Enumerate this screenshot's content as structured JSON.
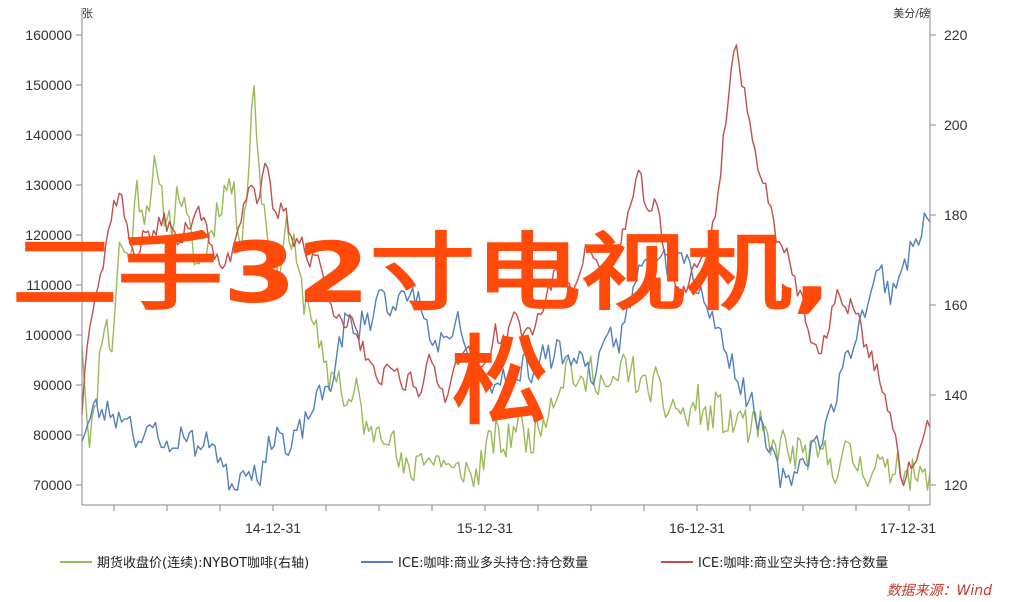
{
  "chart_data": {
    "type": "line",
    "left_axis_unit": "张",
    "right_axis_unit": "美分/磅",
    "left_ylim": [
      70000,
      160000
    ],
    "left_ticks": [
      "160000",
      "150000",
      "140000",
      "130000",
      "120000",
      "110000",
      "100000",
      "90000",
      "80000",
      "70000"
    ],
    "right_ylim": [
      120,
      220
    ],
    "right_ticks": [
      "220",
      "200",
      "180",
      "160",
      "140",
      "120"
    ],
    "x_labels": [
      "14-12-31",
      "15-12-31",
      "16-12-31",
      "17-12-31"
    ],
    "grid": false,
    "legend_position": "bottom",
    "source": "数据来源：Wind",
    "series": [
      {
        "name": "期货收盘价(连续):NYBOT咖啡(右轴)",
        "axis": "right",
        "color": "#9aba59",
        "anchors": [
          [
            0,
            153
          ],
          [
            0.3,
            131
          ],
          [
            0.6,
            135
          ],
          [
            1,
            158
          ],
          [
            1.4,
            150
          ],
          [
            1.8,
            175
          ],
          [
            2.2,
            169
          ],
          [
            2.6,
            186
          ],
          [
            3,
            180
          ],
          [
            3.4,
            190
          ],
          [
            3.8,
            182
          ],
          [
            4.2,
            178
          ],
          [
            4.6,
            186
          ],
          [
            5,
            177
          ],
          [
            5.5,
            168
          ],
          [
            6,
            175
          ],
          [
            6.5,
            183
          ],
          [
            7,
            188
          ],
          [
            7.5,
            175
          ],
          [
            7.8,
            186
          ],
          [
            8.1,
            210
          ],
          [
            8.4,
            187
          ],
          [
            8.8,
            175
          ],
          [
            9.2,
            165
          ],
          [
            9.6,
            178
          ],
          [
            10,
            172
          ],
          [
            10.4,
            162
          ],
          [
            10.8,
            160
          ],
          [
            11.2,
            150
          ],
          [
            11.6,
            143
          ],
          [
            12,
            146
          ],
          [
            12.5,
            137
          ],
          [
            13,
            141
          ],
          [
            13.5,
            130
          ],
          [
            14,
            134
          ],
          [
            14.5,
            132
          ],
          [
            15,
            124
          ],
          [
            15.5,
            122
          ],
          [
            16,
            128
          ],
          [
            16.5,
            125
          ],
          [
            17,
            126
          ],
          [
            17.5,
            122
          ],
          [
            18,
            124
          ],
          [
            18.5,
            121
          ],
          [
            19,
            127
          ],
          [
            19.5,
            131
          ],
          [
            20,
            128
          ],
          [
            20.5,
            135
          ],
          [
            21,
            130
          ],
          [
            21.5,
            132
          ],
          [
            22,
            138
          ],
          [
            22.5,
            142
          ],
          [
            23,
            148
          ],
          [
            23.5,
            140
          ],
          [
            24,
            146
          ],
          [
            24.5,
            143
          ],
          [
            25,
            140
          ],
          [
            25.5,
            147
          ],
          [
            26,
            145
          ],
          [
            26.5,
            141
          ],
          [
            27,
            143
          ],
          [
            27.5,
            137
          ],
          [
            28,
            138
          ],
          [
            28.5,
            134
          ],
          [
            29,
            139
          ],
          [
            29.5,
            134
          ],
          [
            30,
            138
          ],
          [
            30.5,
            132
          ],
          [
            31,
            136
          ],
          [
            31.5,
            132
          ],
          [
            32,
            133
          ],
          [
            32.5,
            127
          ],
          [
            33,
            130
          ],
          [
            33.5,
            126
          ],
          [
            34,
            128
          ],
          [
            34.5,
            126
          ],
          [
            35,
            127
          ],
          [
            35.5,
            124
          ],
          [
            36,
            127
          ],
          [
            36.5,
            125
          ],
          [
            37,
            123
          ],
          [
            37.5,
            125
          ],
          [
            38,
            122
          ],
          [
            38.5,
            126
          ],
          [
            39,
            122
          ],
          [
            40,
            121
          ]
        ],
        "amplitude": 4,
        "samples": 340,
        "seed": 11
      },
      {
        "name": "ICE:咖啡:商业多头持仓:持仓数量",
        "axis": "left",
        "color": "#4f81bd",
        "anchors": [
          [
            0,
            80000
          ],
          [
            0.3,
            82000
          ],
          [
            0.6,
            86000
          ],
          [
            0.9,
            84000
          ],
          [
            1.3,
            85000
          ],
          [
            1.7,
            83000
          ],
          [
            2.1,
            85000
          ],
          [
            2.5,
            80000
          ],
          [
            2.9,
            78000
          ],
          [
            3.3,
            82000
          ],
          [
            3.7,
            80000
          ],
          [
            4.1,
            76000
          ],
          [
            4.5,
            79000
          ],
          [
            4.9,
            81000
          ],
          [
            5.3,
            78000
          ],
          [
            5.7,
            77000
          ],
          [
            6.1,
            80000
          ],
          [
            6.5,
            75000
          ],
          [
            6.9,
            71000
          ],
          [
            7.3,
            70000
          ],
          [
            7.7,
            74000
          ],
          [
            8.1,
            73000
          ],
          [
            8.5,
            72000
          ],
          [
            8.9,
            79000
          ],
          [
            9.3,
            82000
          ],
          [
            9.7,
            75000
          ],
          [
            10.1,
            80000
          ],
          [
            10.5,
            82000
          ],
          [
            10.9,
            86000
          ],
          [
            11.3,
            88000
          ],
          [
            11.7,
            90000
          ],
          [
            12.1,
            97000
          ],
          [
            12.5,
            104000
          ],
          [
            12.9,
            99000
          ],
          [
            13.3,
            104000
          ],
          [
            13.7,
            103000
          ],
          [
            14.1,
            110000
          ],
          [
            14.5,
            105000
          ],
          [
            14.9,
            108000
          ],
          [
            15.3,
            106000
          ],
          [
            15.7,
            109000
          ],
          [
            16.1,
            104000
          ],
          [
            16.5,
            98000
          ],
          [
            16.9,
            99000
          ],
          [
            17.3,
            97000
          ],
          [
            17.7,
            103000
          ],
          [
            18.1,
            98000
          ],
          [
            18.5,
            91000
          ],
          [
            18.9,
            94000
          ],
          [
            19.3,
            89000
          ],
          [
            19.7,
            92000
          ],
          [
            20.1,
            93000
          ],
          [
            20.5,
            90000
          ],
          [
            20.9,
            95000
          ],
          [
            21.3,
            92000
          ],
          [
            21.7,
            97000
          ],
          [
            22.1,
            95000
          ],
          [
            22.5,
            98000
          ],
          [
            22.9,
            94000
          ],
          [
            23.3,
            97000
          ],
          [
            23.7,
            94000
          ],
          [
            24.1,
            92000
          ],
          [
            24.5,
            95000
          ],
          [
            24.9,
            100000
          ],
          [
            25.3,
            98000
          ],
          [
            25.7,
            104000
          ],
          [
            26.1,
            110000
          ],
          [
            26.5,
            117000
          ],
          [
            26.9,
            114000
          ],
          [
            27.3,
            118000
          ],
          [
            27.7,
            113000
          ],
          [
            28.1,
            118000
          ],
          [
            28.5,
            116000
          ],
          [
            28.9,
            111000
          ],
          [
            29.3,
            108000
          ],
          [
            29.7,
            104000
          ],
          [
            30.1,
            100000
          ],
          [
            30.5,
            96000
          ],
          [
            30.9,
            92000
          ],
          [
            31.3,
            88000
          ],
          [
            31.7,
            86000
          ],
          [
            32.1,
            80000
          ],
          [
            32.5,
            76000
          ],
          [
            32.9,
            72000
          ],
          [
            33.3,
            70000
          ],
          [
            33.7,
            74000
          ],
          [
            34.1,
            75000
          ],
          [
            34.5,
            78000
          ],
          [
            34.9,
            80000
          ],
          [
            35.3,
            84000
          ],
          [
            35.7,
            90000
          ],
          [
            36.1,
            96000
          ],
          [
            36.5,
            100000
          ],
          [
            36.9,
            105000
          ],
          [
            37.3,
            110000
          ],
          [
            37.7,
            113000
          ],
          [
            38.1,
            108000
          ],
          [
            38.5,
            112000
          ],
          [
            38.9,
            115000
          ],
          [
            39.3,
            118000
          ],
          [
            39.7,
            123000
          ],
          [
            40,
            122000
          ]
        ],
        "amplitude": 2500,
        "samples": 300,
        "seed": 23
      },
      {
        "name": "ICE:咖啡:商业空头持仓:持仓数量",
        "axis": "left",
        "color": "#c0504d",
        "anchors": [
          [
            0,
            85000
          ],
          [
            0.3,
            102000
          ],
          [
            0.6,
            108000
          ],
          [
            1,
            114000
          ],
          [
            1.4,
            125000
          ],
          [
            1.8,
            129000
          ],
          [
            2.2,
            119000
          ],
          [
            2.6,
            116000
          ],
          [
            3,
            121000
          ],
          [
            3.4,
            119000
          ],
          [
            3.8,
            124000
          ],
          [
            4.2,
            121000
          ],
          [
            4.6,
            118000
          ],
          [
            5,
            122000
          ],
          [
            5.5,
            126000
          ],
          [
            6,
            119000
          ],
          [
            6.5,
            113000
          ],
          [
            7,
            116000
          ],
          [
            7.5,
            124000
          ],
          [
            7.9,
            131000
          ],
          [
            8.3,
            127000
          ],
          [
            8.7,
            134000
          ],
          [
            9.1,
            123000
          ],
          [
            9.5,
            126000
          ],
          [
            9.9,
            119000
          ],
          [
            10.3,
            120000
          ],
          [
            10.7,
            114000
          ],
          [
            11.1,
            116000
          ],
          [
            11.5,
            110000
          ],
          [
            11.9,
            105000
          ],
          [
            12.3,
            101000
          ],
          [
            12.7,
            103000
          ],
          [
            13.1,
            98000
          ],
          [
            13.5,
            96000
          ],
          [
            13.9,
            90000
          ],
          [
            14.3,
            92000
          ],
          [
            14.7,
            94000
          ],
          [
            15.1,
            89000
          ],
          [
            15.5,
            92000
          ],
          [
            15.9,
            88000
          ],
          [
            16.3,
            96000
          ],
          [
            16.7,
            91000
          ],
          [
            17.1,
            88000
          ],
          [
            17.5,
            92000
          ],
          [
            17.9,
            98000
          ],
          [
            18.3,
            96000
          ],
          [
            18.7,
            92000
          ],
          [
            19.1,
            95000
          ],
          [
            19.5,
            101000
          ],
          [
            19.9,
            98000
          ],
          [
            20.3,
            104000
          ],
          [
            20.9,
            100000
          ],
          [
            21.5,
            103000
          ],
          [
            22.1,
            110000
          ],
          [
            22.7,
            115000
          ],
          [
            23.1,
            108000
          ],
          [
            23.5,
            114000
          ],
          [
            23.9,
            118000
          ],
          [
            24.3,
            114000
          ],
          [
            24.7,
            110000
          ],
          [
            25.1,
            114000
          ],
          [
            25.5,
            120000
          ],
          [
            25.9,
            126000
          ],
          [
            26.3,
            132000
          ],
          [
            26.7,
            125000
          ],
          [
            27.1,
            126000
          ],
          [
            27.5,
            116000
          ],
          [
            27.9,
            112000
          ],
          [
            28.3,
            108000
          ],
          [
            28.6,
            110000
          ],
          [
            28.9,
            115000
          ],
          [
            29.2,
            114000
          ],
          [
            29.6,
            118000
          ],
          [
            30,
            128000
          ],
          [
            30.4,
            145000
          ],
          [
            30.8,
            159000
          ],
          [
            31.2,
            149000
          ],
          [
            31.6,
            139000
          ],
          [
            32,
            133000
          ],
          [
            32.4,
            127000
          ],
          [
            32.8,
            119000
          ],
          [
            33.2,
            118000
          ],
          [
            33.6,
            111000
          ],
          [
            34,
            106000
          ],
          [
            34.4,
            98000
          ],
          [
            34.8,
            95000
          ],
          [
            35.2,
            102000
          ],
          [
            35.6,
            109000
          ],
          [
            36,
            104000
          ],
          [
            36.4,
            107000
          ],
          [
            36.8,
            100000
          ],
          [
            37.2,
            96000
          ],
          [
            37.6,
            92000
          ],
          [
            38,
            85000
          ],
          [
            38.4,
            78000
          ],
          [
            38.7,
            71000
          ],
          [
            39,
            73000
          ],
          [
            39.4,
            76000
          ],
          [
            39.8,
            80000
          ],
          [
            40,
            83000
          ]
        ],
        "amplitude": 1800,
        "samples": 320,
        "seed": 37
      }
    ]
  },
  "overlay": {
    "line1": "二手32寸电视机,",
    "line2": "松"
  }
}
